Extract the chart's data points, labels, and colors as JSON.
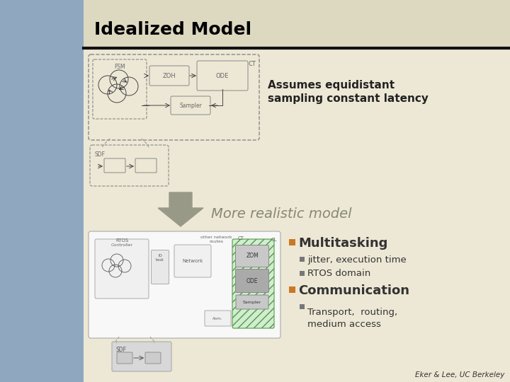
{
  "title": "Idealized Model",
  "slide_bg": "#ede8d5",
  "title_bg": "#ddd8c0",
  "left_bg": "#8fa8c0",
  "separator_color": "#111111",
  "title_color": "#000000",
  "title_fontsize": 18,
  "assumes_text": "Assumes equidistant\nsampling constant latency",
  "assumes_fontsize": 11,
  "more_realistic_text": "More realistic model",
  "more_realistic_color": "#888878",
  "more_realistic_fontsize": 14,
  "bullet_orange": "#cc7722",
  "bullet_gray": "#777777",
  "multitasking_text": "Multitasking",
  "sub_bullet1": "jitter, execution time",
  "sub_bullet2": "RTOS domain",
  "communication_text": "Communication",
  "transport_text": "Transport,  routing,\nmedium access",
  "credit_text": "Eker & Lee, UC Berkeley",
  "diagram_color": "#666666",
  "diagram_bg": "#ede8d5"
}
